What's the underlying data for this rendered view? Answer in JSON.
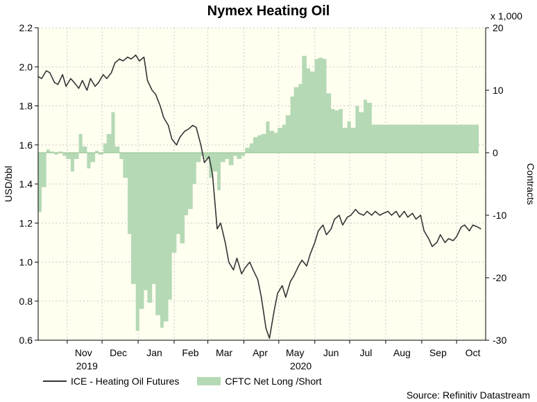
{
  "chart_data": {
    "type": "line+area",
    "title": "Nymex Heating Oil",
    "ylabel_left": "USD/bbl",
    "ylabel_right": "Contracts",
    "right_multiplier": "x 1,000",
    "left_ylim": [
      0.6,
      2.2
    ],
    "left_ticks": [
      "0.6",
      "0.8",
      "1.0",
      "1.2",
      "1.4",
      "1.6",
      "1.8",
      "2.0",
      "2.2"
    ],
    "right_ylim": [
      -30,
      20
    ],
    "right_ticks": [
      "-30",
      "-20",
      "-10",
      "0",
      "10",
      "20"
    ],
    "month_ticks": [
      "Nov",
      "Dec",
      "Jan",
      "Feb",
      "Mar",
      "Apr",
      "May",
      "Jun",
      "Jul",
      "Aug",
      "Sep",
      "Oct"
    ],
    "year_labels": [
      "2019",
      "2020"
    ],
    "grid": true,
    "x_start": "2019-10-07",
    "x_end": "2020-10-26",
    "series": [
      {
        "name": "ICE - Heating Oil Futures",
        "color": "#333333",
        "points": [
          [
            "2019-10-07",
            1.95
          ],
          [
            "2019-10-10",
            1.94
          ],
          [
            "2019-10-14",
            1.98
          ],
          [
            "2019-10-17",
            1.97
          ],
          [
            "2019-10-21",
            1.92
          ],
          [
            "2019-10-24",
            1.91
          ],
          [
            "2019-10-28",
            1.96
          ],
          [
            "2019-10-31",
            1.9
          ],
          [
            "2019-11-04",
            1.94
          ],
          [
            "2019-11-07",
            1.92
          ],
          [
            "2019-11-11",
            1.89
          ],
          [
            "2019-11-14",
            1.93
          ],
          [
            "2019-11-18",
            1.88
          ],
          [
            "2019-11-21",
            1.94
          ],
          [
            "2019-11-25",
            1.9
          ],
          [
            "2019-11-28",
            1.92
          ],
          [
            "2019-12-02",
            1.96
          ],
          [
            "2019-12-05",
            1.94
          ],
          [
            "2019-12-09",
            1.97
          ],
          [
            "2019-12-12",
            2.02
          ],
          [
            "2019-12-16",
            2.04
          ],
          [
            "2019-12-19",
            2.03
          ],
          [
            "2019-12-23",
            2.05
          ],
          [
            "2019-12-26",
            2.04
          ],
          [
            "2019-12-30",
            2.06
          ],
          [
            "2020-01-02",
            2.03
          ],
          [
            "2020-01-06",
            2.05
          ],
          [
            "2020-01-09",
            1.93
          ],
          [
            "2020-01-13",
            1.88
          ],
          [
            "2020-01-16",
            1.86
          ],
          [
            "2020-01-20",
            1.8
          ],
          [
            "2020-01-23",
            1.74
          ],
          [
            "2020-01-27",
            1.7
          ],
          [
            "2020-01-30",
            1.63
          ],
          [
            "2020-02-03",
            1.6
          ],
          [
            "2020-02-06",
            1.64
          ],
          [
            "2020-02-10",
            1.67
          ],
          [
            "2020-02-13",
            1.68
          ],
          [
            "2020-02-17",
            1.7
          ],
          [
            "2020-02-20",
            1.69
          ],
          [
            "2020-02-24",
            1.6
          ],
          [
            "2020-02-27",
            1.51
          ],
          [
            "2020-03-02",
            1.54
          ],
          [
            "2020-03-05",
            1.45
          ],
          [
            "2020-03-09",
            1.17
          ],
          [
            "2020-03-12",
            1.2
          ],
          [
            "2020-03-16",
            1.1
          ],
          [
            "2020-03-19",
            1.0
          ],
          [
            "2020-03-23",
            0.96
          ],
          [
            "2020-03-26",
            1.02
          ],
          [
            "2020-03-30",
            0.94
          ],
          [
            "2020-04-02",
            0.97
          ],
          [
            "2020-04-06",
            1.0
          ],
          [
            "2020-04-09",
            0.96
          ],
          [
            "2020-04-13",
            0.91
          ],
          [
            "2020-04-16",
            0.82
          ],
          [
            "2020-04-20",
            0.66
          ],
          [
            "2020-04-23",
            0.61
          ],
          [
            "2020-04-27",
            0.75
          ],
          [
            "2020-04-30",
            0.84
          ],
          [
            "2020-05-04",
            0.88
          ],
          [
            "2020-05-07",
            0.82
          ],
          [
            "2020-05-11",
            0.9
          ],
          [
            "2020-05-14",
            0.93
          ],
          [
            "2020-05-18",
            0.98
          ],
          [
            "2020-05-21",
            1.01
          ],
          [
            "2020-05-25",
            0.98
          ],
          [
            "2020-05-28",
            1.04
          ],
          [
            "2020-06-01",
            1.1
          ],
          [
            "2020-06-04",
            1.16
          ],
          [
            "2020-06-08",
            1.19
          ],
          [
            "2020-06-11",
            1.14
          ],
          [
            "2020-06-15",
            1.17
          ],
          [
            "2020-06-18",
            1.22
          ],
          [
            "2020-06-22",
            1.24
          ],
          [
            "2020-06-25",
            1.19
          ],
          [
            "2020-06-29",
            1.23
          ],
          [
            "2020-07-02",
            1.24
          ],
          [
            "2020-07-06",
            1.27
          ],
          [
            "2020-07-09",
            1.25
          ],
          [
            "2020-07-13",
            1.24
          ],
          [
            "2020-07-16",
            1.26
          ],
          [
            "2020-07-20",
            1.24
          ],
          [
            "2020-07-23",
            1.26
          ],
          [
            "2020-07-27",
            1.24
          ],
          [
            "2020-07-30",
            1.25
          ],
          [
            "2020-08-03",
            1.26
          ],
          [
            "2020-08-06",
            1.24
          ],
          [
            "2020-08-10",
            1.26
          ],
          [
            "2020-08-13",
            1.23
          ],
          [
            "2020-08-17",
            1.26
          ],
          [
            "2020-08-20",
            1.23
          ],
          [
            "2020-08-24",
            1.25
          ],
          [
            "2020-08-27",
            1.22
          ],
          [
            "2020-08-31",
            1.24
          ],
          [
            "2020-09-03",
            1.16
          ],
          [
            "2020-09-07",
            1.12
          ],
          [
            "2020-09-10",
            1.08
          ],
          [
            "2020-09-14",
            1.1
          ],
          [
            "2020-09-17",
            1.14
          ],
          [
            "2020-09-21",
            1.1
          ],
          [
            "2020-09-24",
            1.12
          ],
          [
            "2020-09-28",
            1.11
          ],
          [
            "2020-10-01",
            1.13
          ],
          [
            "2020-10-05",
            1.18
          ],
          [
            "2020-10-08",
            1.19
          ],
          [
            "2020-10-12",
            1.16
          ],
          [
            "2020-10-15",
            1.19
          ],
          [
            "2020-10-19",
            1.18
          ],
          [
            "2020-10-22",
            1.17
          ]
        ]
      },
      {
        "name": "CFTC Net Long /Short",
        "color": "#b5d9b5",
        "points": [
          [
            "2019-10-07",
            -9.5
          ],
          [
            "2019-10-10",
            -5.5
          ],
          [
            "2019-10-14",
            0.5
          ],
          [
            "2019-10-17",
            0.2
          ],
          [
            "2019-10-21",
            -0.3
          ],
          [
            "2019-10-24",
            0.2
          ],
          [
            "2019-10-28",
            -0.5
          ],
          [
            "2019-10-31",
            -1.0
          ],
          [
            "2019-11-04",
            -3.0
          ],
          [
            "2019-11-07",
            -1.0
          ],
          [
            "2019-11-11",
            3.0
          ],
          [
            "2019-11-14",
            1.0
          ],
          [
            "2019-11-18",
            -2.5
          ],
          [
            "2019-11-21",
            -1.5
          ],
          [
            "2019-11-25",
            0.3
          ],
          [
            "2019-11-28",
            -0.3
          ],
          [
            "2019-12-02",
            1.5
          ],
          [
            "2019-12-05",
            3.0
          ],
          [
            "2019-12-09",
            6.5
          ],
          [
            "2019-12-12",
            1.0
          ],
          [
            "2019-12-16",
            -1.0
          ],
          [
            "2019-12-19",
            -4.0
          ],
          [
            "2019-12-23",
            -13.0
          ],
          [
            "2019-12-26",
            -21.0
          ],
          [
            "2019-12-30",
            -28.5
          ],
          [
            "2020-01-02",
            -25.0
          ],
          [
            "2020-01-06",
            -22.0
          ],
          [
            "2020-01-09",
            -24.0
          ],
          [
            "2020-01-13",
            -21.0
          ],
          [
            "2020-01-16",
            -26.0
          ],
          [
            "2020-01-20",
            -28.0
          ],
          [
            "2020-01-23",
            -27.0
          ],
          [
            "2020-01-27",
            -23.5
          ],
          [
            "2020-01-30",
            -16.0
          ],
          [
            "2020-02-03",
            -13.0
          ],
          [
            "2020-02-06",
            -14.5
          ],
          [
            "2020-02-10",
            -10.0
          ],
          [
            "2020-02-13",
            -9.0
          ],
          [
            "2020-02-17",
            -5.0
          ],
          [
            "2020-02-20",
            -1.5
          ],
          [
            "2020-02-24",
            -0.5
          ],
          [
            "2020-02-27",
            -1.0
          ],
          [
            "2020-03-02",
            -4.0
          ],
          [
            "2020-03-05",
            -3.0
          ],
          [
            "2020-03-09",
            -6.0
          ],
          [
            "2020-03-12",
            -1.5
          ],
          [
            "2020-03-16",
            -1.0
          ],
          [
            "2020-03-19",
            -2.0
          ],
          [
            "2020-03-23",
            -0.5
          ],
          [
            "2020-03-26",
            -1.0
          ],
          [
            "2020-03-30",
            -0.5
          ],
          [
            "2020-04-02",
            0.8
          ],
          [
            "2020-04-06",
            1.5
          ],
          [
            "2020-04-09",
            2.5
          ],
          [
            "2020-04-13",
            2.8
          ],
          [
            "2020-04-16",
            3.0
          ],
          [
            "2020-04-20",
            5.0
          ],
          [
            "2020-04-23",
            3.5
          ],
          [
            "2020-04-27",
            3.2
          ],
          [
            "2020-04-30",
            4.0
          ],
          [
            "2020-05-04",
            4.5
          ],
          [
            "2020-05-07",
            6.0
          ],
          [
            "2020-05-11",
            9.0
          ],
          [
            "2020-05-14",
            10.5
          ],
          [
            "2020-05-18",
            11.0
          ],
          [
            "2020-05-21",
            15.5
          ],
          [
            "2020-05-25",
            13.5
          ],
          [
            "2020-05-28",
            13.0
          ],
          [
            "2020-06-01",
            15.0
          ],
          [
            "2020-06-04",
            15.2
          ],
          [
            "2020-06-08",
            15.0
          ],
          [
            "2020-06-11",
            9.5
          ],
          [
            "2020-06-15",
            7.0
          ],
          [
            "2020-06-18",
            6.8
          ],
          [
            "2020-06-22",
            7.0
          ],
          [
            "2020-06-25",
            4.0
          ],
          [
            "2020-06-29",
            5.0
          ],
          [
            "2020-07-02",
            4.0
          ],
          [
            "2020-07-06",
            7.5
          ],
          [
            "2020-07-09",
            6.5
          ],
          [
            "2020-07-13",
            8.5
          ],
          [
            "2020-07-16",
            8.0
          ],
          [
            "2020-07-20",
            4.5
          ],
          [
            "2020-07-23",
            4.5
          ]
        ]
      }
    ],
    "source": "Source: Refinitiv Datastream"
  }
}
